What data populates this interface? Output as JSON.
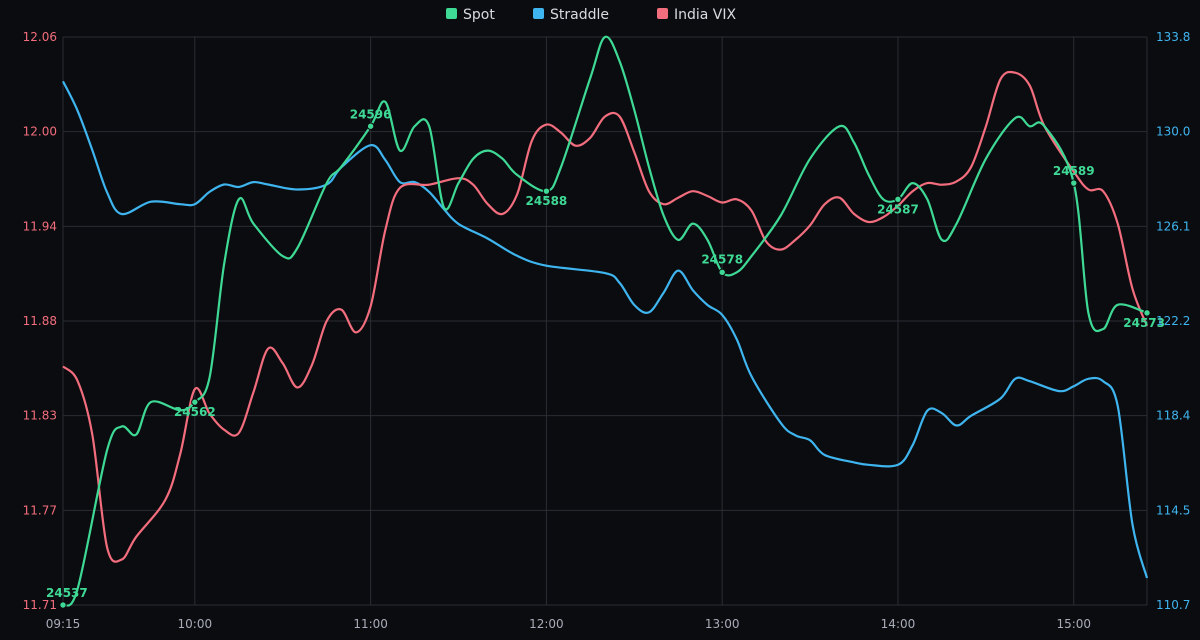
{
  "chart_data": {
    "type": "line",
    "legend": [
      {
        "name": "Spot",
        "color": "#3fd996"
      },
      {
        "name": "Straddle",
        "color": "#3fb5f0"
      },
      {
        "name": "India VIX",
        "color": "#f26d7d"
      }
    ],
    "x_ticks": [
      "09:15",
      "10:00",
      "11:00",
      "12:00",
      "13:00",
      "14:00",
      "15:00"
    ],
    "left_axis": {
      "ticks": [
        "11.71",
        "11.77",
        "11.83",
        "11.88",
        "11.94",
        "12.00",
        "12.06"
      ],
      "range": [
        11.71,
        12.06
      ]
    },
    "right_axis": {
      "ticks": [
        "110.7",
        "114.5",
        "118.4",
        "122.2",
        "126.1",
        "130.0",
        "133.8"
      ],
      "range": [
        110.7,
        133.8
      ]
    },
    "spot_labels": [
      {
        "time": "09:15",
        "text": "24537"
      },
      {
        "time": "10:00",
        "text": "24562"
      },
      {
        "time": "11:00",
        "text": "24596"
      },
      {
        "time": "12:00",
        "text": "24588"
      },
      {
        "time": "13:00",
        "text": "24578"
      },
      {
        "time": "14:00",
        "text": "24587"
      },
      {
        "time": "15:00",
        "text": "24589"
      },
      {
        "time": "15:25",
        "text": "24573"
      }
    ],
    "series": [
      {
        "name": "Spot",
        "axis": "spot",
        "range": [
          24537,
          24607
        ],
        "points": [
          [
            "09:15",
            24537
          ],
          [
            "09:20",
            24539
          ],
          [
            "09:30",
            24556
          ],
          [
            "09:35",
            24559
          ],
          [
            "09:40",
            24558
          ],
          [
            "09:45",
            24562
          ],
          [
            "09:55",
            24561
          ],
          [
            "10:00",
            24562
          ],
          [
            "10:05",
            24565
          ],
          [
            "10:10",
            24579
          ],
          [
            "10:15",
            24587
          ],
          [
            "10:20",
            24584
          ],
          [
            "10:30",
            24580
          ],
          [
            "10:35",
            24581
          ],
          [
            "10:45",
            24589
          ],
          [
            "10:50",
            24591
          ],
          [
            "11:00",
            24596
          ],
          [
            "11:05",
            24599
          ],
          [
            "11:10",
            24593
          ],
          [
            "11:15",
            24596
          ],
          [
            "11:20",
            24596
          ],
          [
            "11:25",
            24586
          ],
          [
            "11:30",
            24589
          ],
          [
            "11:35",
            24592
          ],
          [
            "11:40",
            24593
          ],
          [
            "11:45",
            24592
          ],
          [
            "11:50",
            24590
          ],
          [
            "12:00",
            24588
          ],
          [
            "12:05",
            24591
          ],
          [
            "12:15",
            24602
          ],
          [
            "12:20",
            24607
          ],
          [
            "12:25",
            24604
          ],
          [
            "12:30",
            24598
          ],
          [
            "12:35",
            24591
          ],
          [
            "12:40",
            24585
          ],
          [
            "12:45",
            24582
          ],
          [
            "12:50",
            24584
          ],
          [
            "12:55",
            24582
          ],
          [
            "13:00",
            24578
          ],
          [
            "13:05",
            24578
          ],
          [
            "13:10",
            24580
          ],
          [
            "13:20",
            24585
          ],
          [
            "13:30",
            24592
          ],
          [
            "13:40",
            24596
          ],
          [
            "13:45",
            24594
          ],
          [
            "13:50",
            24590
          ],
          [
            "13:55",
            24587
          ],
          [
            "14:00",
            24587
          ],
          [
            "14:05",
            24589
          ],
          [
            "14:10",
            24587
          ],
          [
            "14:15",
            24582
          ],
          [
            "14:20",
            24584
          ],
          [
            "14:30",
            24592
          ],
          [
            "14:40",
            24597
          ],
          [
            "14:45",
            24596
          ],
          [
            "14:50",
            24596
          ],
          [
            "15:00",
            24589
          ],
          [
            "15:05",
            24573
          ],
          [
            "15:10",
            24571
          ],
          [
            "15:15",
            24574
          ],
          [
            "15:25",
            24573
          ]
        ]
      },
      {
        "name": "Straddle",
        "axis": "right",
        "points": [
          [
            "09:15",
            132.0
          ],
          [
            "09:20",
            130.8
          ],
          [
            "09:25",
            129.2
          ],
          [
            "09:30",
            127.5
          ],
          [
            "09:35",
            126.6
          ],
          [
            "09:45",
            127.1
          ],
          [
            "09:55",
            127.0
          ],
          [
            "10:00",
            127.0
          ],
          [
            "10:05",
            127.5
          ],
          [
            "10:10",
            127.8
          ],
          [
            "10:15",
            127.7
          ],
          [
            "10:20",
            127.9
          ],
          [
            "10:25",
            127.8
          ],
          [
            "10:35",
            127.6
          ],
          [
            "10:45",
            127.8
          ],
          [
            "10:50",
            128.5
          ],
          [
            "11:00",
            129.4
          ],
          [
            "11:05",
            128.8
          ],
          [
            "11:10",
            127.9
          ],
          [
            "11:15",
            127.9
          ],
          [
            "11:20",
            127.5
          ],
          [
            "11:25",
            126.8
          ],
          [
            "11:30",
            126.2
          ],
          [
            "11:40",
            125.6
          ],
          [
            "11:50",
            124.9
          ],
          [
            "12:00",
            124.5
          ],
          [
            "12:20",
            124.2
          ],
          [
            "12:25",
            123.8
          ],
          [
            "12:30",
            122.9
          ],
          [
            "12:35",
            122.6
          ],
          [
            "12:40",
            123.4
          ],
          [
            "12:45",
            124.3
          ],
          [
            "12:50",
            123.5
          ],
          [
            "12:55",
            122.9
          ],
          [
            "13:00",
            122.5
          ],
          [
            "13:05",
            121.5
          ],
          [
            "13:10",
            120.0
          ],
          [
            "13:20",
            118.1
          ],
          [
            "13:25",
            117.6
          ],
          [
            "13:30",
            117.4
          ],
          [
            "13:35",
            116.8
          ],
          [
            "13:45",
            116.5
          ],
          [
            "13:50",
            116.4
          ],
          [
            "14:00",
            116.4
          ],
          [
            "14:05",
            117.2
          ],
          [
            "14:10",
            118.6
          ],
          [
            "14:15",
            118.5
          ],
          [
            "14:20",
            118.0
          ],
          [
            "14:25",
            118.4
          ],
          [
            "14:35",
            119.1
          ],
          [
            "14:40",
            119.9
          ],
          [
            "14:45",
            119.8
          ],
          [
            "14:55",
            119.4
          ],
          [
            "15:00",
            119.6
          ],
          [
            "15:05",
            119.9
          ],
          [
            "15:10",
            119.8
          ],
          [
            "15:15",
            118.8
          ],
          [
            "15:20",
            114.0
          ],
          [
            "15:25",
            111.8
          ]
        ]
      },
      {
        "name": "India VIX",
        "axis": "left",
        "points": [
          [
            "09:15",
            11.857
          ],
          [
            "09:20",
            11.848
          ],
          [
            "09:25",
            11.815
          ],
          [
            "09:30",
            11.746
          ],
          [
            "09:35",
            11.738
          ],
          [
            "09:40",
            11.752
          ],
          [
            "09:50",
            11.775
          ],
          [
            "09:55",
            11.803
          ],
          [
            "10:00",
            11.843
          ],
          [
            "10:05",
            11.828
          ],
          [
            "10:10",
            11.818
          ],
          [
            "10:15",
            11.816
          ],
          [
            "10:20",
            11.841
          ],
          [
            "10:25",
            11.868
          ],
          [
            "10:30",
            11.859
          ],
          [
            "10:35",
            11.844
          ],
          [
            "10:40",
            11.858
          ],
          [
            "10:45",
            11.885
          ],
          [
            "10:50",
            11.892
          ],
          [
            "10:55",
            11.878
          ],
          [
            "11:00",
            11.894
          ],
          [
            "11:05",
            11.941
          ],
          [
            "11:10",
            11.967
          ],
          [
            "11:20",
            11.969
          ],
          [
            "11:30",
            11.973
          ],
          [
            "11:35",
            11.969
          ],
          [
            "11:40",
            11.957
          ],
          [
            "11:45",
            11.951
          ],
          [
            "11:50",
            11.963
          ],
          [
            "11:55",
            11.996
          ],
          [
            "12:00",
            12.006
          ],
          [
            "12:05",
            12.001
          ],
          [
            "12:10",
            11.993
          ],
          [
            "12:15",
            11.998
          ],
          [
            "12:20",
            12.011
          ],
          [
            "12:25",
            12.011
          ],
          [
            "12:30",
            11.989
          ],
          [
            "12:35",
            11.965
          ],
          [
            "12:40",
            11.957
          ],
          [
            "12:45",
            11.961
          ],
          [
            "12:50",
            11.965
          ],
          [
            "12:55",
            11.962
          ],
          [
            "13:00",
            11.958
          ],
          [
            "13:05",
            11.96
          ],
          [
            "13:10",
            11.953
          ],
          [
            "13:15",
            11.934
          ],
          [
            "13:20",
            11.929
          ],
          [
            "13:25",
            11.935
          ],
          [
            "13:30",
            11.944
          ],
          [
            "13:35",
            11.957
          ],
          [
            "13:40",
            11.961
          ],
          [
            "13:45",
            11.951
          ],
          [
            "13:50",
            11.946
          ],
          [
            "13:55",
            11.949
          ],
          [
            "14:00",
            11.956
          ],
          [
            "14:05",
            11.965
          ],
          [
            "14:10",
            11.97
          ],
          [
            "14:15",
            11.969
          ],
          [
            "14:20",
            11.971
          ],
          [
            "14:25",
            11.98
          ],
          [
            "14:30",
            12.005
          ],
          [
            "14:35",
            12.034
          ],
          [
            "14:40",
            12.038
          ],
          [
            "14:45",
            12.03
          ],
          [
            "14:50",
            12.005
          ],
          [
            "15:00",
            11.977
          ],
          [
            "15:05",
            11.966
          ],
          [
            "15:10",
            11.965
          ],
          [
            "15:15",
            11.945
          ],
          [
            "15:20",
            11.905
          ],
          [
            "15:25",
            11.882
          ]
        ]
      }
    ]
  }
}
